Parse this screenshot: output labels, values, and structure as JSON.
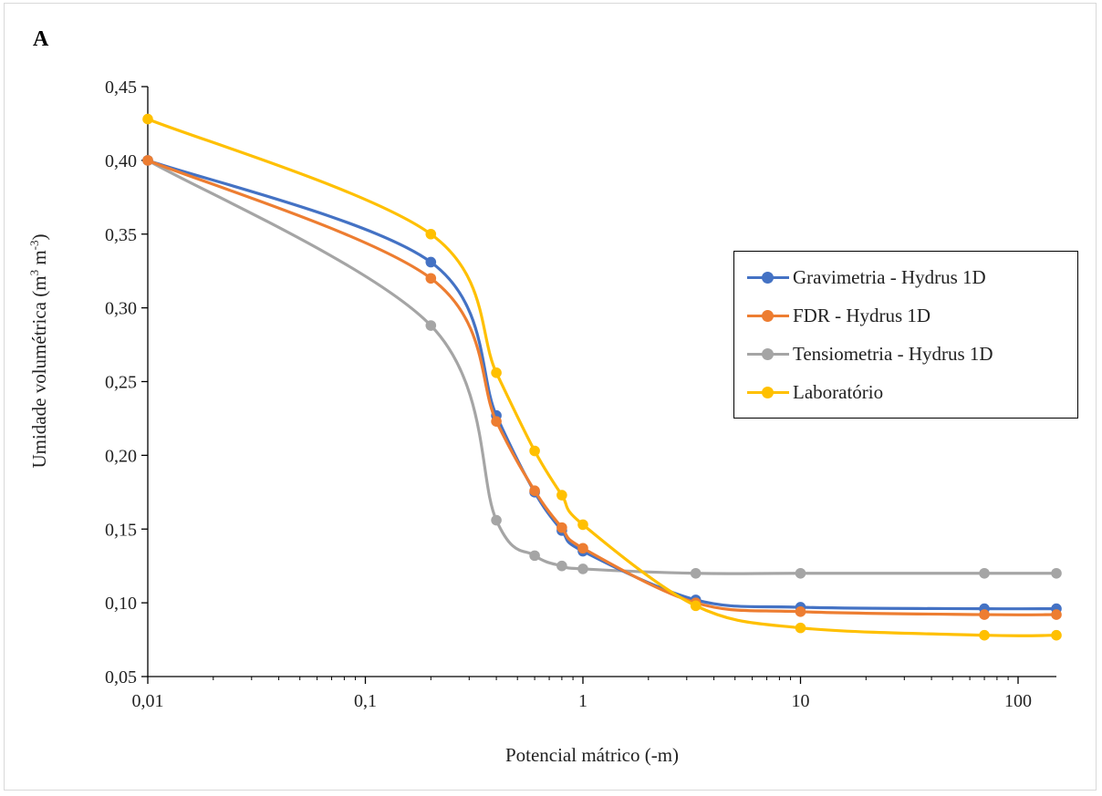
{
  "chart_data": {
    "type": "line",
    "panel_label": "A",
    "xlabel": "Potencial mátrico (-m)",
    "ylabel_main": "Umidade volumétrica (m",
    "ylabel_sup1": "3",
    "ylabel_mid": " m",
    "ylabel_sup2": "-3",
    "ylabel_end": ")",
    "x_scale": "log",
    "xlim": [
      0.01,
      150
    ],
    "ylim": [
      0.05,
      0.45
    ],
    "x_ticks": [
      {
        "value": 0.01,
        "label": "0,01"
      },
      {
        "value": 0.1,
        "label": "0,1"
      },
      {
        "value": 1,
        "label": "1"
      },
      {
        "value": 10,
        "label": "10"
      },
      {
        "value": 100,
        "label": "100"
      }
    ],
    "y_ticks": [
      {
        "value": 0.05,
        "label": "0,05"
      },
      {
        "value": 0.1,
        "label": "0,10"
      },
      {
        "value": 0.15,
        "label": "0,15"
      },
      {
        "value": 0.2,
        "label": "0,20"
      },
      {
        "value": 0.25,
        "label": "0,25"
      },
      {
        "value": 0.3,
        "label": "0,30"
      },
      {
        "value": 0.35,
        "label": "0,35"
      },
      {
        "value": 0.4,
        "label": "0,40"
      },
      {
        "value": 0.45,
        "label": "0,45"
      }
    ],
    "grid": false,
    "legend_position": "right",
    "series": [
      {
        "name": "Gravimetria - Hydrus 1D",
        "color": "#4472C4",
        "points": [
          [
            0.01,
            0.4
          ],
          [
            0.2,
            0.331
          ],
          [
            0.4,
            0.227
          ],
          [
            0.6,
            0.175
          ],
          [
            0.8,
            0.149
          ],
          [
            1,
            0.135
          ],
          [
            3.3,
            0.102
          ],
          [
            10,
            0.097
          ],
          [
            70,
            0.096
          ],
          [
            150,
            0.096
          ]
        ]
      },
      {
        "name": "FDR - Hydrus 1D",
        "color": "#ED7D31",
        "points": [
          [
            0.01,
            0.4
          ],
          [
            0.2,
            0.32
          ],
          [
            0.4,
            0.223
          ],
          [
            0.6,
            0.176
          ],
          [
            0.8,
            0.151
          ],
          [
            1,
            0.137
          ],
          [
            3.3,
            0.1
          ],
          [
            10,
            0.094
          ],
          [
            70,
            0.092
          ],
          [
            150,
            0.092
          ]
        ]
      },
      {
        "name": "Tensiometria - Hydrus 1D",
        "color": "#A5A5A5",
        "points": [
          [
            0.01,
            0.4
          ],
          [
            0.2,
            0.288
          ],
          [
            0.4,
            0.156
          ],
          [
            0.6,
            0.132
          ],
          [
            0.8,
            0.125
          ],
          [
            1,
            0.123
          ],
          [
            3.3,
            0.12
          ],
          [
            10,
            0.12
          ],
          [
            70,
            0.12
          ],
          [
            150,
            0.12
          ]
        ]
      },
      {
        "name": "Laboratório",
        "color": "#FFC000",
        "points": [
          [
            0.01,
            0.428
          ],
          [
            0.2,
            0.35
          ],
          [
            0.4,
            0.256
          ],
          [
            0.6,
            0.203
          ],
          [
            0.8,
            0.173
          ],
          [
            1,
            0.153
          ],
          [
            3.3,
            0.098
          ],
          [
            10,
            0.083
          ],
          [
            70,
            0.078
          ],
          [
            150,
            0.078
          ]
        ]
      }
    ]
  }
}
